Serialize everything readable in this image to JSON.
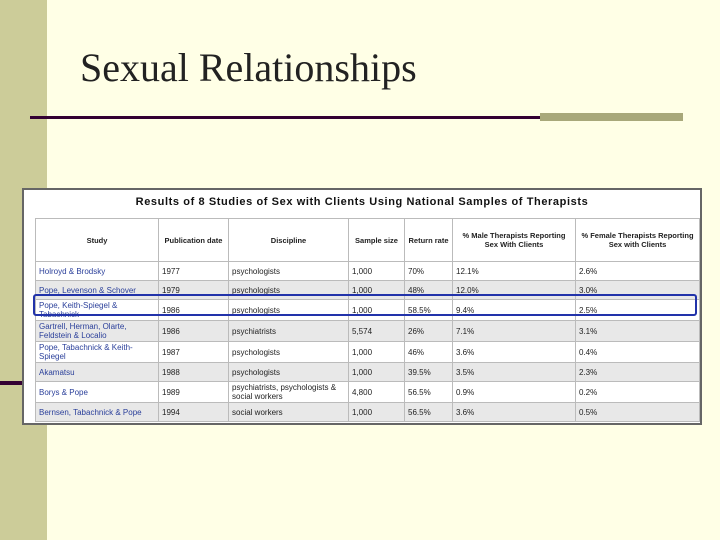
{
  "title": "Sexual Relationships",
  "table": {
    "caption": "Results of 8 Studies of Sex with Clients Using National Samples of Therapists",
    "columns": [
      "Study",
      "Publication date",
      "Discipline",
      "Sample size",
      "Return rate",
      "% Male Therapists Reporting Sex With Clients",
      "% Female Therapists Reporting Sex with Clients"
    ],
    "rows": [
      [
        "Holroyd & Brodsky",
        "1977",
        "psychologists",
        "1,000",
        "70%",
        "12.1%",
        "2.6%"
      ],
      [
        "Pope, Levenson & Schover",
        "1979",
        "psychologists",
        "1,000",
        "48%",
        "12.0%",
        "3.0%"
      ],
      [
        "Pope, Keith-Spiegel & Tabachnick",
        "1986",
        "psychologists",
        "1,000",
        "58.5%",
        "9.4%",
        "2.5%"
      ],
      [
        "Gartrell, Herman, Olarte, Feldstein & Localio",
        "1986",
        "psychiatrists",
        "5,574",
        "26%",
        "7.1%",
        "3.1%"
      ],
      [
        "Pope, Tabachnick & Keith-Spiegel",
        "1987",
        "psychologists",
        "1,000",
        "46%",
        "3.6%",
        "0.4%"
      ],
      [
        "Akamatsu",
        "1988",
        "psychologists",
        "1,000",
        "39.5%",
        "3.5%",
        "2.3%"
      ],
      [
        "Borys & Pope",
        "1989",
        "psychiatrists, psychologists & social workers",
        "4,800",
        "56.5%",
        "0.9%",
        "0.2%"
      ],
      [
        "Bernsen, Tabachnick & Pope",
        "1994",
        "social workers",
        "1,000",
        "56.5%",
        "3.6%",
        "0.5%"
      ]
    ]
  }
}
